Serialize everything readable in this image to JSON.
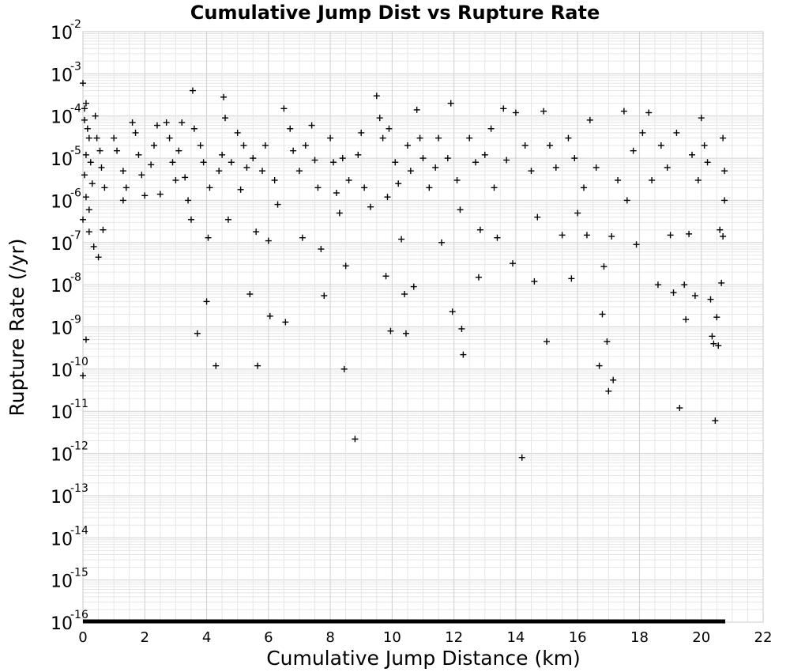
{
  "chart_data": {
    "type": "scatter",
    "title": "Cumulative Jump Dist vs Rupture Rate",
    "xlabel": "Cumulative Jump Distance (km)",
    "ylabel": "Rupture Rate (/yr)",
    "xlim": [
      0,
      22
    ],
    "ylim": [
      1e-16,
      0.01
    ],
    "y_scale": "log",
    "grid": true,
    "marker": "+",
    "marker_color": "#000000",
    "x_ticks": [
      "0",
      "2",
      "4",
      "6",
      "8",
      "10",
      "12",
      "14",
      "16",
      "18",
      "20",
      "22"
    ],
    "y_ticks": [
      {
        "base": "10",
        "exp": "-2"
      },
      {
        "base": "10",
        "exp": "-3"
      },
      {
        "base": "10",
        "exp": "-4"
      },
      {
        "base": "10",
        "exp": "-5"
      },
      {
        "base": "10",
        "exp": "-6"
      },
      {
        "base": "10",
        "exp": "-7"
      },
      {
        "base": "10",
        "exp": "-8"
      },
      {
        "base": "10",
        "exp": "-9"
      },
      {
        "base": "10",
        "exp": "-10"
      },
      {
        "base": "10",
        "exp": "-11"
      },
      {
        "base": "10",
        "exp": "-12"
      },
      {
        "base": "10",
        "exp": "-13"
      },
      {
        "base": "10",
        "exp": "-14"
      },
      {
        "base": "10",
        "exp": "-15"
      },
      {
        "base": "10",
        "exp": "-16"
      }
    ],
    "points": [
      [
        0.0,
        0.0006
      ],
      [
        0.05,
        0.00015
      ],
      [
        0.1,
        0.0002
      ],
      [
        0.05,
        8e-05
      ],
      [
        0.15,
        5e-05
      ],
      [
        0.2,
        3e-05
      ],
      [
        0.1,
        1.2e-05
      ],
      [
        0.25,
        8e-06
      ],
      [
        0.05,
        4e-06
      ],
      [
        0.3,
        2.5e-06
      ],
      [
        0.1,
        1.2e-06
      ],
      [
        0.2,
        6e-07
      ],
      [
        0.0,
        3.5e-07
      ],
      [
        0.2,
        1.8e-07
      ],
      [
        0.35,
        8e-08
      ],
      [
        0.5,
        4.5e-08
      ],
      [
        0.65,
        2e-07
      ],
      [
        0.1,
        5e-10
      ],
      [
        0.0,
        7e-11
      ],
      [
        0.4,
        0.0001
      ],
      [
        0.45,
        3e-05
      ],
      [
        0.55,
        1.5e-05
      ],
      [
        0.6,
        6e-06
      ],
      [
        0.7,
        2e-06
      ],
      [
        1.0,
        3e-05
      ],
      [
        1.1,
        1.5e-05
      ],
      [
        1.3,
        5e-06
      ],
      [
        1.4,
        2e-06
      ],
      [
        1.3,
        1e-06
      ],
      [
        1.6,
        7e-05
      ],
      [
        1.7,
        4e-05
      ],
      [
        1.8,
        1.2e-05
      ],
      [
        1.9,
        4e-06
      ],
      [
        2.0,
        1.3e-06
      ],
      [
        2.2,
        7e-06
      ],
      [
        2.3,
        2e-05
      ],
      [
        2.4,
        6e-05
      ],
      [
        2.5,
        1.4e-06
      ],
      [
        2.7,
        7e-05
      ],
      [
        2.8,
        3e-05
      ],
      [
        2.9,
        8e-06
      ],
      [
        3.0,
        3e-06
      ],
      [
        3.1,
        1.5e-05
      ],
      [
        3.2,
        7e-05
      ],
      [
        3.3,
        3.5e-06
      ],
      [
        3.4,
        1e-06
      ],
      [
        3.5,
        3.5e-07
      ],
      [
        3.55,
        0.0004
      ],
      [
        3.6,
        5e-05
      ],
      [
        3.7,
        7e-10
      ],
      [
        3.8,
        2e-05
      ],
      [
        3.9,
        8e-06
      ],
      [
        4.0,
        4e-09
      ],
      [
        4.05,
        1.3e-07
      ],
      [
        4.1,
        2e-06
      ],
      [
        4.3,
        1.2e-10
      ],
      [
        4.4,
        5e-06
      ],
      [
        4.5,
        1.2e-05
      ],
      [
        4.55,
        0.00028
      ],
      [
        4.6,
        9e-05
      ],
      [
        4.7,
        3.5e-07
      ],
      [
        4.8,
        8e-06
      ],
      [
        5.0,
        4e-05
      ],
      [
        5.1,
        1.8e-06
      ],
      [
        5.2,
        2e-05
      ],
      [
        5.3,
        6e-06
      ],
      [
        5.4,
        6e-09
      ],
      [
        5.5,
        1e-05
      ],
      [
        5.6,
        1.8e-07
      ],
      [
        5.65,
        1.2e-10
      ],
      [
        5.8,
        5e-06
      ],
      [
        5.9,
        2e-05
      ],
      [
        6.0,
        1.1e-07
      ],
      [
        6.05,
        1.8e-09
      ],
      [
        6.2,
        3e-06
      ],
      [
        6.3,
        8e-07
      ],
      [
        6.5,
        0.00015
      ],
      [
        6.55,
        1.3e-09
      ],
      [
        6.7,
        5e-05
      ],
      [
        6.8,
        1.5e-05
      ],
      [
        7.0,
        5e-06
      ],
      [
        7.1,
        1.3e-07
      ],
      [
        7.2,
        2e-05
      ],
      [
        7.4,
        6e-05
      ],
      [
        7.5,
        9e-06
      ],
      [
        7.6,
        2e-06
      ],
      [
        7.7,
        7e-08
      ],
      [
        7.8,
        5.5e-09
      ],
      [
        8.0,
        3e-05
      ],
      [
        8.1,
        8e-06
      ],
      [
        8.2,
        1.5e-06
      ],
      [
        8.3,
        5e-07
      ],
      [
        8.4,
        1e-05
      ],
      [
        8.45,
        1e-10
      ],
      [
        8.5,
        2.8e-08
      ],
      [
        8.6,
        3e-06
      ],
      [
        8.8,
        2.2e-12
      ],
      [
        8.9,
        1.2e-05
      ],
      [
        9.0,
        4e-05
      ],
      [
        9.1,
        2e-06
      ],
      [
        9.3,
        7e-07
      ],
      [
        9.5,
        0.0003
      ],
      [
        9.6,
        9e-05
      ],
      [
        9.7,
        3e-05
      ],
      [
        9.8,
        1.6e-08
      ],
      [
        9.85,
        1.2e-06
      ],
      [
        9.9,
        5e-05
      ],
      [
        9.95,
        8e-10
      ],
      [
        10.1,
        8e-06
      ],
      [
        10.2,
        2.5e-06
      ],
      [
        10.3,
        1.2e-07
      ],
      [
        10.4,
        6e-09
      ],
      [
        10.45,
        7e-10
      ],
      [
        10.5,
        2e-05
      ],
      [
        10.6,
        5e-06
      ],
      [
        10.7,
        9e-09
      ],
      [
        10.8,
        0.00014
      ],
      [
        10.9,
        3e-05
      ],
      [
        11.0,
        1e-05
      ],
      [
        11.2,
        2e-06
      ],
      [
        11.4,
        6e-06
      ],
      [
        11.5,
        3e-05
      ],
      [
        11.6,
        1e-07
      ],
      [
        11.8,
        1e-05
      ],
      [
        11.9,
        0.0002
      ],
      [
        11.95,
        2.3e-09
      ],
      [
        12.1,
        3e-06
      ],
      [
        12.2,
        6e-07
      ],
      [
        12.25,
        9e-10
      ],
      [
        12.3,
        2.2e-10
      ],
      [
        12.5,
        3e-05
      ],
      [
        12.7,
        8e-06
      ],
      [
        12.8,
        1.5e-08
      ],
      [
        12.85,
        2e-07
      ],
      [
        13.0,
        1.2e-05
      ],
      [
        13.2,
        5e-05
      ],
      [
        13.3,
        2e-06
      ],
      [
        13.4,
        1.3e-07
      ],
      [
        13.6,
        0.00015
      ],
      [
        13.7,
        9e-06
      ],
      [
        13.9,
        3.2e-08
      ],
      [
        14.0,
        0.00012
      ],
      [
        14.2,
        8e-13
      ],
      [
        14.3,
        2e-05
      ],
      [
        14.5,
        5e-06
      ],
      [
        14.6,
        1.2e-08
      ],
      [
        14.7,
        4e-07
      ],
      [
        14.9,
        0.00013
      ],
      [
        15.0,
        4.5e-10
      ],
      [
        15.1,
        2e-05
      ],
      [
        15.3,
        6e-06
      ],
      [
        15.5,
        1.5e-07
      ],
      [
        15.7,
        3e-05
      ],
      [
        15.8,
        1.4e-08
      ],
      [
        15.9,
        1e-05
      ],
      [
        16.0,
        5e-07
      ],
      [
        16.2,
        2e-06
      ],
      [
        16.3,
        1.5e-07
      ],
      [
        16.4,
        8e-05
      ],
      [
        16.6,
        6e-06
      ],
      [
        16.7,
        1.2e-10
      ],
      [
        16.8,
        2e-09
      ],
      [
        16.85,
        2.7e-08
      ],
      [
        16.95,
        4.5e-10
      ],
      [
        17.0,
        3e-11
      ],
      [
        17.1,
        1.4e-07
      ],
      [
        17.15,
        5.5e-11
      ],
      [
        17.3,
        3e-06
      ],
      [
        17.5,
        0.00013
      ],
      [
        17.6,
        1e-06
      ],
      [
        17.8,
        1.5e-05
      ],
      [
        17.9,
        9e-08
      ],
      [
        18.1,
        4e-05
      ],
      [
        18.3,
        0.00012
      ],
      [
        18.4,
        3e-06
      ],
      [
        18.6,
        1e-08
      ],
      [
        18.7,
        2e-05
      ],
      [
        18.9,
        6e-06
      ],
      [
        19.0,
        1.5e-07
      ],
      [
        19.1,
        6.5e-09
      ],
      [
        19.2,
        4e-05
      ],
      [
        19.3,
        1.2e-11
      ],
      [
        19.45,
        1e-08
      ],
      [
        19.5,
        1.5e-09
      ],
      [
        19.6,
        1.6e-07
      ],
      [
        19.7,
        1.2e-05
      ],
      [
        19.8,
        5.5e-09
      ],
      [
        19.9,
        3e-06
      ],
      [
        20.0,
        9e-05
      ],
      [
        20.1,
        2e-05
      ],
      [
        20.2,
        8e-06
      ],
      [
        20.3,
        4.5e-09
      ],
      [
        20.35,
        6e-10
      ],
      [
        20.4,
        4e-10
      ],
      [
        20.45,
        6e-12
      ],
      [
        20.5,
        1.7e-09
      ],
      [
        20.55,
        3.6e-10
      ],
      [
        20.6,
        2e-07
      ],
      [
        20.65,
        1.1e-08
      ],
      [
        20.7,
        3e-05
      ],
      [
        20.7,
        1.4e-07
      ],
      [
        20.75,
        5e-06
      ],
      [
        20.75,
        1e-06
      ]
    ]
  }
}
